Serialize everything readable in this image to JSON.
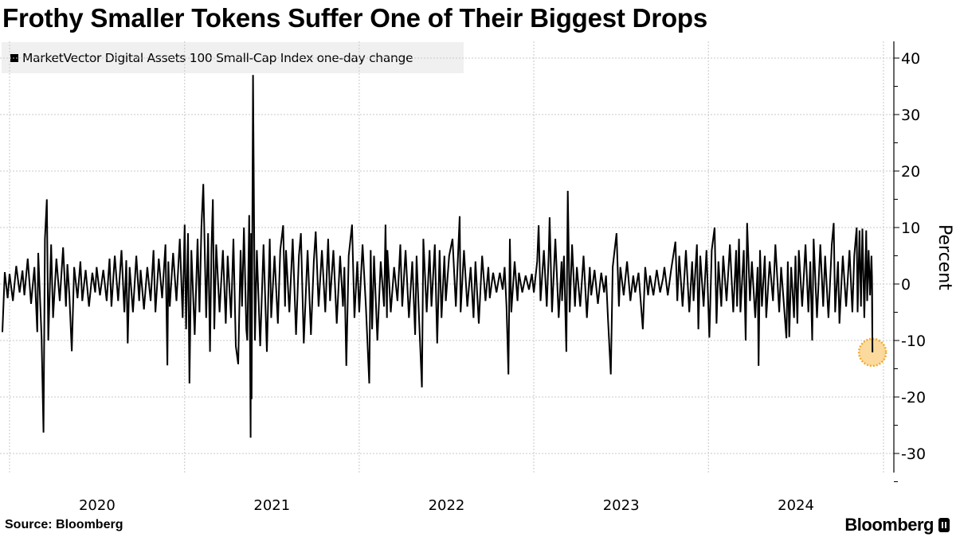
{
  "title": "Frothy Smaller Tokens Suffer One of Their Biggest Drops",
  "legend_label": "MarketVector Digital Assets 100 Small-Cap Index one-day change",
  "source": "Source: Bloomberg",
  "brand": "Bloomberg",
  "colors": {
    "line": "#000000",
    "highlight_fill": "#fbd38d",
    "highlight_border": "#f0a92e",
    "grid": "#c8c8c8",
    "legend_bg": "#f0f0f0"
  },
  "chart_data": {
    "type": "line",
    "title": "Frothy Smaller Tokens Suffer One of Their Biggest Drops",
    "ylabel": "Percent",
    "xlabel": "",
    "ylim": [
      -33,
      43
    ],
    "yticks": [
      40,
      30,
      20,
      10,
      0,
      -10,
      -20,
      -30
    ],
    "ytick_labels": [
      "40",
      "30",
      "20",
      "10",
      "0",
      "-10",
      "-20",
      "-30"
    ],
    "xtick_labels": [
      "2020",
      "2021",
      "2022",
      "2023",
      "2024"
    ],
    "grid": true,
    "legend": "top-left",
    "y_axis_side": "right",
    "highlight": {
      "date": "2024-12-09",
      "value": -12.1
    },
    "series": [
      {
        "name": "MarketVector Digital Assets 100 Small-Cap Index one-day change",
        "x": [
          "2019-12-17",
          "2019-12-22",
          "2019-12-28",
          "2020-01-01",
          "2020-01-08",
          "2020-01-15",
          "2020-01-22",
          "2020-01-28",
          "2020-02-01",
          "2020-02-08",
          "2020-02-15",
          "2020-02-22",
          "2020-02-28",
          "2020-03-01",
          "2020-03-08",
          "2020-03-12",
          "2020-03-15",
          "2020-03-19",
          "2020-03-22",
          "2020-03-28",
          "2020-04-01",
          "2020-04-08",
          "2020-04-15",
          "2020-04-22",
          "2020-04-28",
          "2020-05-01",
          "2020-05-05",
          "2020-05-10",
          "2020-05-15",
          "2020-05-22",
          "2020-05-28",
          "2020-06-01",
          "2020-06-08",
          "2020-06-15",
          "2020-06-22",
          "2020-06-28",
          "2020-07-01",
          "2020-07-08",
          "2020-07-15",
          "2020-07-22",
          "2020-07-28",
          "2020-08-01",
          "2020-08-08",
          "2020-08-15",
          "2020-08-22",
          "2020-08-28",
          "2020-09-01",
          "2020-09-04",
          "2020-09-08",
          "2020-09-15",
          "2020-09-22",
          "2020-09-28",
          "2020-10-01",
          "2020-10-08",
          "2020-10-15",
          "2020-10-22",
          "2020-10-28",
          "2020-11-01",
          "2020-11-08",
          "2020-11-15",
          "2020-11-22",
          "2020-11-26",
          "2020-11-28",
          "2020-12-01",
          "2020-12-08",
          "2020-12-15",
          "2020-12-22",
          "2020-12-28",
          "2021-01-01",
          "2021-01-04",
          "2021-01-08",
          "2021-01-11",
          "2021-01-15",
          "2021-01-22",
          "2021-01-28",
          "2021-02-01",
          "2021-02-05",
          "2021-02-09",
          "2021-02-15",
          "2021-02-19",
          "2021-02-23",
          "2021-02-26",
          "2021-03-01",
          "2021-03-04",
          "2021-03-08",
          "2021-03-15",
          "2021-03-22",
          "2021-03-28",
          "2021-04-01",
          "2021-04-08",
          "2021-04-13",
          "2021-04-18",
          "2021-04-23",
          "2021-04-28",
          "2021-05-01",
          "2021-05-05",
          "2021-05-10",
          "2021-05-12",
          "2021-05-16",
          "2021-05-19",
          "2021-05-20",
          "2021-05-21",
          "2021-05-24",
          "2021-05-28",
          "2021-06-01",
          "2021-06-08",
          "2021-06-15",
          "2021-06-22",
          "2021-06-28",
          "2021-07-01",
          "2021-07-08",
          "2021-07-15",
          "2021-07-20",
          "2021-07-26",
          "2021-07-30",
          "2021-08-01",
          "2021-08-08",
          "2021-08-15",
          "2021-08-22",
          "2021-08-28",
          "2021-09-01",
          "2021-09-07",
          "2021-09-15",
          "2021-09-22",
          "2021-09-28",
          "2021-10-02",
          "2021-10-08",
          "2021-10-15",
          "2021-10-22",
          "2021-10-28",
          "2021-11-01",
          "2021-11-08",
          "2021-11-15",
          "2021-11-22",
          "2021-11-28",
          "2021-12-01",
          "2021-12-05",
          "2021-12-10",
          "2021-12-17",
          "2021-12-22",
          "2021-12-28",
          "2022-01-01",
          "2022-01-08",
          "2022-01-15",
          "2022-01-22",
          "2022-01-25",
          "2022-01-28",
          "2022-02-01",
          "2022-02-08",
          "2022-02-15",
          "2022-02-22",
          "2022-02-25",
          "2022-02-28",
          "2022-03-01",
          "2022-03-08",
          "2022-03-15",
          "2022-03-22",
          "2022-03-28",
          "2022-04-01",
          "2022-04-08",
          "2022-04-15",
          "2022-04-22",
          "2022-04-28",
          "2022-05-01",
          "2022-05-06",
          "2022-05-12",
          "2022-05-15",
          "2022-05-22",
          "2022-05-28",
          "2022-06-01",
          "2022-06-08",
          "2022-06-13",
          "2022-06-18",
          "2022-06-22",
          "2022-06-28",
          "2022-07-01",
          "2022-07-08",
          "2022-07-15",
          "2022-07-22",
          "2022-07-30",
          "2022-08-01",
          "2022-08-08",
          "2022-08-15",
          "2022-08-22",
          "2022-08-28",
          "2022-09-01",
          "2022-09-08",
          "2022-09-15",
          "2022-09-22",
          "2022-09-28",
          "2022-10-01",
          "2022-10-08",
          "2022-10-15",
          "2022-10-22",
          "2022-10-28",
          "2022-11-01",
          "2022-11-05",
          "2022-11-09",
          "2022-11-12",
          "2022-11-15",
          "2022-11-22",
          "2022-11-28",
          "2022-12-01",
          "2022-12-08",
          "2022-12-15",
          "2022-12-22",
          "2022-12-28",
          "2023-01-01",
          "2023-01-08",
          "2023-01-11",
          "2023-01-15",
          "2023-01-22",
          "2023-01-28",
          "2023-02-01",
          "2023-02-03",
          "2023-02-08",
          "2023-02-15",
          "2023-02-22",
          "2023-02-28",
          "2023-03-01",
          "2023-03-05",
          "2023-03-10",
          "2023-03-13",
          "2023-03-17",
          "2023-03-22",
          "2023-03-28",
          "2023-04-01",
          "2023-04-08",
          "2023-04-15",
          "2023-04-22",
          "2023-04-28",
          "2023-05-01",
          "2023-05-08",
          "2023-05-15",
          "2023-05-22",
          "2023-05-28",
          "2023-06-01",
          "2023-06-05",
          "2023-06-11",
          "2023-06-15",
          "2023-06-23",
          "2023-06-28",
          "2023-07-01",
          "2023-07-08",
          "2023-07-15",
          "2023-07-22",
          "2023-07-28",
          "2023-08-01",
          "2023-08-08",
          "2023-08-17",
          "2023-08-22",
          "2023-08-28",
          "2023-09-01",
          "2023-09-08",
          "2023-09-15",
          "2023-09-22",
          "2023-09-28",
          "2023-10-01",
          "2023-10-08",
          "2023-10-15",
          "2023-10-24",
          "2023-10-28",
          "2023-11-01",
          "2023-11-08",
          "2023-11-15",
          "2023-11-22",
          "2023-11-28",
          "2023-12-01",
          "2023-12-08",
          "2023-12-11",
          "2023-12-15",
          "2023-12-22",
          "2023-12-28",
          "2024-01-03",
          "2024-01-08",
          "2024-01-14",
          "2024-01-18",
          "2024-01-22",
          "2024-01-28",
          "2024-02-01",
          "2024-02-08",
          "2024-02-15",
          "2024-02-22",
          "2024-02-28",
          "2024-03-01",
          "2024-03-05",
          "2024-03-08",
          "2024-03-15",
          "2024-03-19",
          "2024-03-22",
          "2024-03-28",
          "2024-04-01",
          "2024-04-08",
          "2024-04-13",
          "2024-04-15",
          "2024-04-18",
          "2024-04-22",
          "2024-04-28",
          "2024-05-01",
          "2024-05-08",
          "2024-05-15",
          "2024-05-20",
          "2024-05-28",
          "2024-06-01",
          "2024-06-08",
          "2024-06-12",
          "2024-06-15",
          "2024-06-18",
          "2024-06-22",
          "2024-06-28",
          "2024-07-01",
          "2024-07-05",
          "2024-07-08",
          "2024-07-15",
          "2024-07-22",
          "2024-07-28",
          "2024-08-01",
          "2024-08-05",
          "2024-08-08",
          "2024-08-15",
          "2024-08-22",
          "2024-08-28",
          "2024-09-01",
          "2024-09-08",
          "2024-09-15",
          "2024-09-19",
          "2024-09-22",
          "2024-09-28",
          "2024-10-01",
          "2024-10-08",
          "2024-10-15",
          "2024-10-22",
          "2024-10-28",
          "2024-11-01",
          "2024-11-06",
          "2024-11-08",
          "2024-11-12",
          "2024-11-15",
          "2024-11-18",
          "2024-11-22",
          "2024-11-26",
          "2024-11-28",
          "2024-12-01",
          "2024-12-04",
          "2024-12-07",
          "2024-12-08",
          "2024-12-09"
        ],
        "y": [
          -8.5,
          2.1,
          -2.5,
          1.8,
          -3,
          3.2,
          -1.5,
          2.4,
          -2,
          4.5,
          -3.5,
          3,
          -8.5,
          5.5,
          -9.5,
          -26.3,
          8,
          15,
          -10,
          7,
          -6,
          4.5,
          -3,
          6.5,
          -4,
          3.5,
          -2,
          -11.9,
          3,
          -2.5,
          4,
          -3,
          2.5,
          -4,
          2,
          -1.5,
          3,
          -2,
          2.5,
          -3,
          4.5,
          -4,
          5,
          -3,
          6,
          -5,
          4.2,
          -10.5,
          3,
          -5,
          5,
          -3,
          2.5,
          -4.5,
          3,
          -3,
          6,
          -5,
          4.5,
          -2.5,
          7,
          -14.4,
          4,
          -4,
          5.5,
          -3,
          8,
          -6,
          10.5,
          -8,
          9,
          -17.6,
          6,
          -9,
          8,
          -5,
          10,
          17.7,
          -6,
          9,
          -12,
          6,
          15,
          -8,
          7,
          -5,
          6,
          -7,
          5,
          -6,
          8,
          -11,
          -14.2,
          6,
          -4,
          10,
          -8,
          -10,
          12.2,
          -27.2,
          9,
          -20.4,
          37,
          -10,
          6,
          -11,
          7,
          -12,
          8,
          -6,
          5,
          -7,
          6,
          10.4,
          -4,
          6,
          -5,
          8,
          -9,
          5,
          9,
          -10.5,
          6,
          -9,
          4,
          9.3,
          -4,
          6,
          -5,
          8,
          -3,
          6,
          -7,
          5,
          -4,
          3,
          -14.5,
          5,
          10.5,
          -6,
          4,
          -5,
          7,
          -4,
          -17.6,
          6,
          -8,
          5,
          -10,
          4,
          -4,
          10.5,
          -6,
          6,
          -5,
          3,
          -3,
          7,
          -4,
          6,
          -6,
          4,
          -9,
          5,
          -6,
          -18.3,
          8,
          -5,
          6,
          -4,
          7,
          -10.5,
          6,
          -6,
          5,
          -3,
          5,
          8,
          -4,
          12,
          -5,
          6,
          -4,
          3,
          -6,
          4,
          -7,
          5,
          -3,
          3,
          -2.5,
          2,
          -1.5,
          2,
          -1,
          3,
          -4,
          -16,
          8,
          -5,
          4,
          -3,
          2,
          -1.5,
          1.5,
          -1,
          1.8,
          -1.5,
          4,
          10.4,
          -3,
          6,
          -4,
          5,
          11.8,
          -5,
          8,
          -6,
          4,
          -3,
          5,
          -12,
          16.5,
          -5,
          7,
          -4,
          3,
          -4,
          5,
          -6,
          3,
          -2,
          2.5,
          -3.5,
          2,
          -1.5,
          1.5,
          -6,
          -16,
          3,
          9,
          -4,
          3,
          -2,
          4,
          -3,
          1.5,
          -1.5,
          2,
          -8,
          3,
          -2,
          1.5,
          -2,
          2.5,
          -1.5,
          1,
          3,
          -2,
          2.5,
          7.5,
          -3,
          5,
          -4,
          6,
          -5,
          4,
          -3,
          7,
          -8,
          5,
          -4,
          6,
          -9.5,
          6,
          10,
          -7,
          4,
          -4,
          5,
          -3,
          7,
          -5,
          6,
          -4,
          8,
          -5,
          6,
          -10,
          10.8,
          -3,
          4,
          -6,
          3,
          -14.5,
          6,
          -4,
          5,
          -6,
          4,
          -3,
          7,
          -5,
          3,
          -5,
          -9.6,
          4,
          -9.4,
          3,
          -6,
          5,
          -7,
          6,
          -4,
          7,
          -5,
          4,
          -10,
          8,
          -6,
          7,
          -4,
          5,
          -6,
          7,
          10.8,
          -5,
          4,
          -7,
          5,
          -4,
          6,
          -5,
          5,
          10,
          -5,
          9.5,
          -4,
          9.8,
          -6,
          9.5,
          -3,
          6,
          -2,
          5,
          1.5,
          -12.1
        ]
      }
    ]
  }
}
